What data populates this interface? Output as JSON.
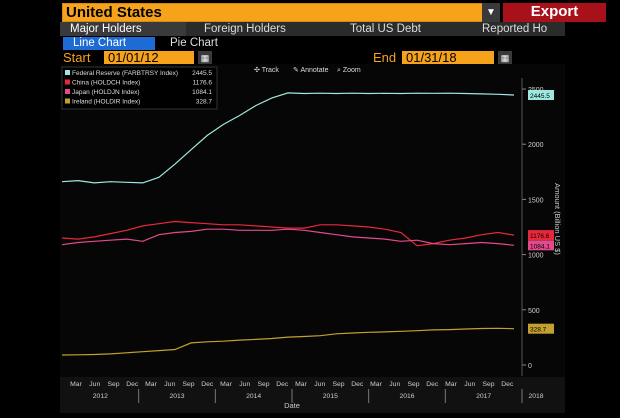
{
  "header": {
    "country": "United States",
    "export_label": "Export"
  },
  "tabs": [
    "Major Holders",
    "Foreign Holders",
    "Total US Debt",
    "Reported Ho"
  ],
  "subtabs": [
    "Line Chart",
    "Pie Chart"
  ],
  "range": {
    "start_label": "Start",
    "start_value": "01/01/12",
    "end_label": "End",
    "end_value": "01/31/18"
  },
  "toolbar": {
    "track": "Track",
    "annotate": "Annotate",
    "zoom": "Zoom"
  },
  "chart_data": {
    "type": "line",
    "xlabel": "Date",
    "ylabel": "Amount (Billion US $)",
    "ylim": [
      -100,
      2600
    ],
    "yticks": [
      0,
      500,
      1000,
      1500,
      2000,
      2500
    ],
    "month_labels": [
      "Mar",
      "Jun",
      "Sep",
      "Dec",
      "Mar",
      "Jun",
      "Sep",
      "Dec",
      "Mar",
      "Jun",
      "Sep",
      "Dec",
      "Mar",
      "Jun",
      "Sep",
      "Dec",
      "Mar",
      "Jun",
      "Sep",
      "Dec",
      "Mar",
      "Jun",
      "Sep",
      "Dec"
    ],
    "year_labels": [
      "2012",
      "2013",
      "2014",
      "2015",
      "2016",
      "2017",
      "2018"
    ],
    "series": [
      {
        "name": "Federal Reserve (FARBTRSY Index)",
        "last": "2445.5",
        "color": "#9ee8df",
        "values": [
          1660,
          1670,
          1650,
          1660,
          1655,
          1650,
          1700,
          1820,
          1950,
          2080,
          2180,
          2260,
          2350,
          2420,
          2465,
          2460,
          2462,
          2460,
          2462,
          2460,
          2461,
          2460,
          2462,
          2461,
          2462,
          2460,
          2456,
          2452,
          2446
        ]
      },
      {
        "name": "China (HOLDCH Index)",
        "last": "1176.6",
        "color": "#e8283a",
        "values": [
          1150,
          1140,
          1160,
          1190,
          1220,
          1260,
          1280,
          1300,
          1290,
          1280,
          1270,
          1270,
          1260,
          1250,
          1240,
          1240,
          1270,
          1270,
          1260,
          1250,
          1230,
          1200,
          1080,
          1100,
          1130,
          1150,
          1180,
          1200,
          1176.6
        ]
      },
      {
        "name": "Japan (HOLDJN Index)",
        "last": "1084.1",
        "color": "#e34a8c",
        "values": [
          1090,
          1110,
          1120,
          1130,
          1140,
          1120,
          1180,
          1200,
          1210,
          1230,
          1230,
          1220,
          1220,
          1220,
          1230,
          1220,
          1200,
          1180,
          1160,
          1150,
          1140,
          1120,
          1130,
          1100,
          1090,
          1100,
          1110,
          1100,
          1084.1
        ]
      },
      {
        "name": "Ireland (HOLDIR Index)",
        "last": "328.7",
        "color": "#c3a12e",
        "values": [
          90,
          92,
          95,
          100,
          110,
          120,
          130,
          140,
          200,
          210,
          215,
          225,
          232,
          240,
          252,
          258,
          265,
          282,
          290,
          296,
          300,
          305,
          310,
          318,
          320,
          326,
          330,
          332,
          328.7
        ]
      }
    ]
  }
}
